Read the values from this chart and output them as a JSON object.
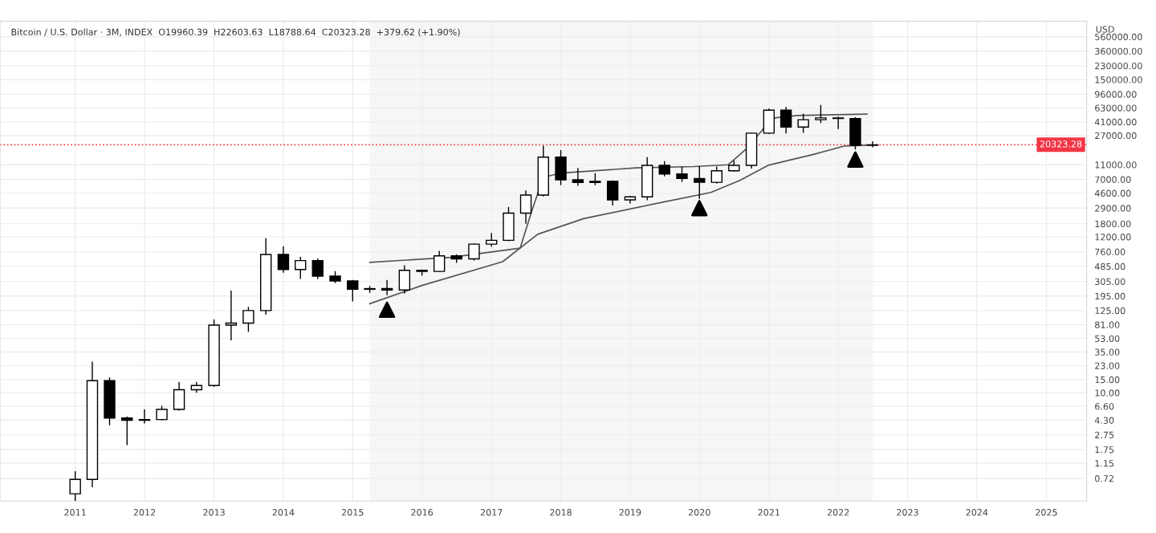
{
  "chart_data": {
    "type": "candlestick",
    "title": "Bitcoin / U.S. Dollar · 3M, INDEX  O19960.39  H22603.63  L18788.64  C20323.28  +379.62 (+1.90%)",
    "ylabel": "USD",
    "x": [
      "2011-01",
      "2011-04",
      "2011-07",
      "2011-10",
      "2012-01",
      "2012-04",
      "2012-07",
      "2012-10",
      "2013-01",
      "2013-04",
      "2013-07",
      "2013-10",
      "2014-01",
      "2014-04",
      "2014-07",
      "2014-10",
      "2015-01",
      "2015-04",
      "2015-07",
      "2015-10",
      "2016-01",
      "2016-04",
      "2016-07",
      "2016-10",
      "2017-01",
      "2017-04",
      "2017-07",
      "2017-10",
      "2018-01",
      "2018-04",
      "2018-07",
      "2018-10",
      "2019-01",
      "2019-04",
      "2019-07",
      "2019-10",
      "2020-01",
      "2020-04",
      "2020-07",
      "2020-10",
      "2021-01",
      "2021-04",
      "2021-07",
      "2021-10",
      "2022-01",
      "2022-04",
      "2022-07"
    ],
    "ohlc": [
      [
        0.45,
        0.9,
        0.36,
        0.7
      ],
      [
        0.7,
        26,
        0.55,
        14.5
      ],
      [
        14.5,
        16,
        3.7,
        4.6
      ],
      [
        4.6,
        4.8,
        2.0,
        4.3
      ],
      [
        4.3,
        6.0,
        3.9,
        4.4
      ],
      [
        4.4,
        6.7,
        4.3,
        6.0
      ],
      [
        6.0,
        14,
        5.8,
        11
      ],
      [
        11,
        14,
        10,
        12.5
      ],
      [
        12.5,
        95,
        12,
        80
      ],
      [
        80,
        230,
        50,
        85
      ],
      [
        85,
        140,
        65,
        125
      ],
      [
        125,
        1150,
        110,
        700
      ],
      [
        700,
        900,
        400,
        440
      ],
      [
        440,
        650,
        330,
        580
      ],
      [
        580,
        620,
        330,
        360
      ],
      [
        360,
        420,
        290,
        310
      ],
      [
        310,
        320,
        165,
        240
      ],
      [
        240,
        265,
        215,
        245
      ],
      [
        245,
        320,
        200,
        235
      ],
      [
        235,
        500,
        210,
        430
      ],
      [
        430,
        440,
        365,
        415
      ],
      [
        415,
        780,
        410,
        670
      ],
      [
        670,
        700,
        540,
        610
      ],
      [
        610,
        980,
        580,
        960
      ],
      [
        960,
        1350,
        890,
        1080
      ],
      [
        1080,
        3000,
        1050,
        2490
      ],
      [
        2490,
        5000,
        1800,
        4340
      ],
      [
        4340,
        19800,
        4150,
        13880
      ],
      [
        13880,
        17200,
        5900,
        6930
      ],
      [
        6930,
        9990,
        5750,
        6390
      ],
      [
        6390,
        8500,
        5850,
        6620
      ],
      [
        6620,
        6800,
        3150,
        3740
      ],
      [
        3740,
        4200,
        3350,
        4100
      ],
      [
        4100,
        13880,
        3700,
        10800
      ],
      [
        10800,
        12300,
        7700,
        8290
      ],
      [
        8290,
        10350,
        6500,
        7200
      ],
      [
        7200,
        10500,
        3850,
        6420
      ],
      [
        6420,
        10430,
        6150,
        9140
      ],
      [
        9140,
        12480,
        8900,
        10780
      ],
      [
        10780,
        29300,
        9800,
        28990
      ],
      [
        28990,
        61800,
        28200,
        58800
      ],
      [
        58800,
        64900,
        28800,
        35040
      ],
      [
        35040,
        52900,
        29300,
        43800
      ],
      [
        43800,
        69000,
        39600,
        46300
      ],
      [
        46300,
        48200,
        32900,
        45540
      ],
      [
        45540,
        47400,
        17600,
        19943.66
      ],
      [
        19960.39,
        22603.63,
        18788.64,
        20323.28
      ]
    ],
    "series": [
      {
        "type": "line",
        "color": "#555555",
        "x": [
          "2015-04",
          "2016-06",
          "2017-06",
          "2017-08",
          "2017-10",
          "2018-01",
          "2019-02",
          "2019-12",
          "2020-06",
          "2020-09",
          "2020-12",
          "2021-01",
          "2021-06",
          "2022-06"
        ],
        "values": [
          550,
          640,
          850,
          2650,
          7500,
          8500,
          10000,
          10400,
          11000,
          17600,
          32700,
          45500,
          50000,
          52000
        ]
      },
      {
        "type": "line",
        "color": "#555555",
        "x": [
          "2015-04",
          "2016-01",
          "2017-03",
          "2017-09",
          "2018-05",
          "2019-06",
          "2020-03",
          "2020-08",
          "2021-01",
          "2021-09",
          "2022-02",
          "2022-06"
        ],
        "values": [
          154,
          270,
          560,
          1300,
          2100,
          3400,
          4700,
          6800,
          10900,
          15300,
          19500,
          20000
        ]
      },
      {
        "type": "scatter",
        "color": "#000000",
        "marker": "triangle",
        "x": [
          "2015-07",
          "2020-01",
          "2022-04"
        ],
        "values": [
          128,
          2900,
          12900
        ]
      }
    ],
    "log": true,
    "xlim": [
      "2009-12",
      "2025-08"
    ],
    "xticks": [
      {
        "value": "2011-01",
        "label": "2011"
      },
      {
        "value": "2012-01",
        "label": "2012"
      },
      {
        "value": "2013-01",
        "label": "2013"
      },
      {
        "value": "2014-01",
        "label": "2014"
      },
      {
        "value": "2015-01",
        "label": "2015"
      },
      {
        "value": "2016-01",
        "label": "2016"
      },
      {
        "value": "2017-01",
        "label": "2017"
      },
      {
        "value": "2018-01",
        "label": "2018"
      },
      {
        "value": "2019-01",
        "label": "2019"
      },
      {
        "value": "2020-01",
        "label": "2020"
      },
      {
        "value": "2021-01",
        "label": "2021"
      },
      {
        "value": "2022-01",
        "label": "2022"
      },
      {
        "value": "2023-01",
        "label": "2023"
      },
      {
        "value": "2024-01",
        "label": "2024"
      },
      {
        "value": "2025-01",
        "label": "2025"
      }
    ],
    "ylim": [
      0.36,
      900000
    ],
    "yticks": [
      {
        "value": 0.72,
        "label": "0.72"
      },
      {
        "value": 1.15,
        "label": "1.15"
      },
      {
        "value": 1.75,
        "label": "1.75"
      },
      {
        "value": 2.75,
        "label": "2.75"
      },
      {
        "value": 4.3,
        "label": "4.30"
      },
      {
        "value": 6.6,
        "label": "6.60"
      },
      {
        "value": 10,
        "label": "10.00"
      },
      {
        "value": 15,
        "label": "15.00"
      },
      {
        "value": 23,
        "label": "23.00"
      },
      {
        "value": 35,
        "label": "35.00"
      },
      {
        "value": 53,
        "label": "53.00"
      },
      {
        "value": 81,
        "label": "81.00"
      },
      {
        "value": 125,
        "label": "125.00"
      },
      {
        "value": 195,
        "label": "195.00"
      },
      {
        "value": 305,
        "label": "305.00"
      },
      {
        "value": 485,
        "label": "485.00"
      },
      {
        "value": 760,
        "label": "760.00"
      },
      {
        "value": 1200,
        "label": "1200.00"
      },
      {
        "value": 1800,
        "label": "1800.00"
      },
      {
        "value": 2900,
        "label": "2900.00"
      },
      {
        "value": 4600,
        "label": "4600.00"
      },
      {
        "value": 7000,
        "label": "7000.00"
      },
      {
        "value": 11000,
        "label": "11000.00"
      },
      {
        "value": 27000,
        "label": "27000.00"
      },
      {
        "value": 41000,
        "label": "41000.00"
      },
      {
        "value": 63000,
        "label": "63000.00"
      },
      {
        "value": 96000,
        "label": "96000.00"
      },
      {
        "value": 150000,
        "label": "150000.00"
      },
      {
        "value": 230000,
        "label": "230000.00"
      },
      {
        "value": 360000,
        "label": "360000.00"
      },
      {
        "value": 560000,
        "label": "560000.00"
      }
    ],
    "ref_lines": [
      {
        "axis": "y",
        "value": 20323.28,
        "label": "20323.28",
        "color": "#f23645",
        "line_style": "dotted"
      }
    ],
    "bands": [
      {
        "axis": "x",
        "from": "2015-04",
        "to": "2022-07",
        "color": "#f6f6f6"
      }
    ],
    "grid": true
  }
}
